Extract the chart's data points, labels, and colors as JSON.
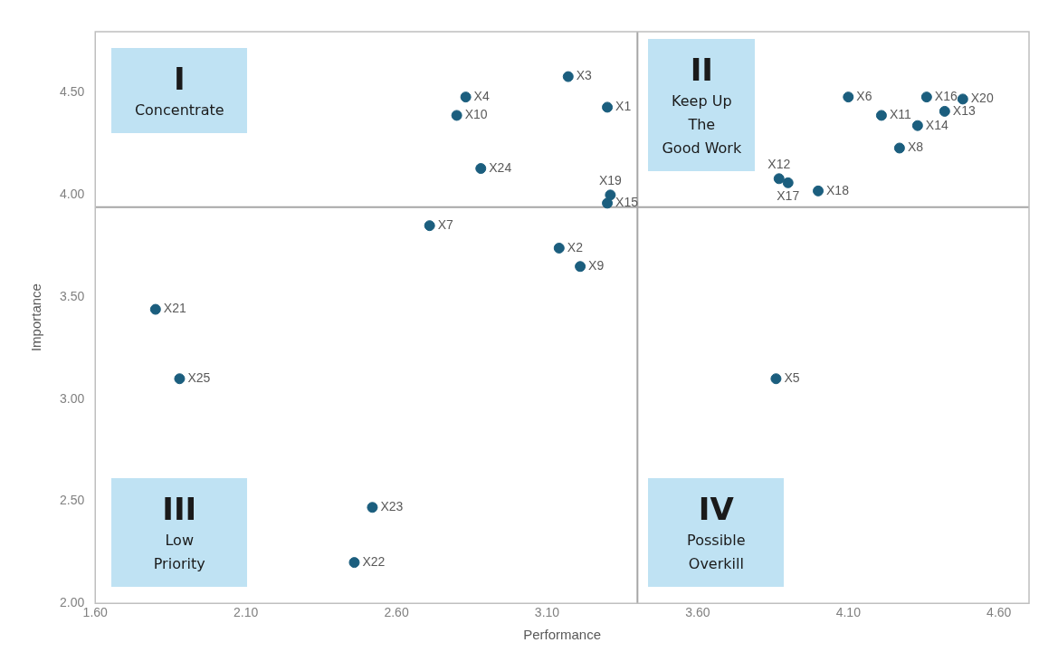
{
  "chart_data": {
    "type": "scatter",
    "xlabel": "Performance",
    "ylabel": "Importance",
    "x": [
      3.3,
      3.14,
      3.17,
      2.83,
      3.86,
      4.1,
      2.71,
      4.27,
      3.21,
      2.8,
      4.21,
      3.87,
      4.42,
      4.33,
      3.3,
      4.36,
      3.9,
      4.0,
      3.31,
      4.48,
      1.8,
      2.46,
      2.52,
      2.88,
      1.88
    ],
    "values": [
      4.43,
      3.74,
      4.58,
      4.48,
      3.1,
      4.48,
      3.85,
      4.23,
      3.65,
      4.39,
      4.39,
      4.08,
      4.41,
      4.34,
      3.96,
      4.48,
      4.06,
      4.02,
      4.0,
      4.47,
      3.44,
      2.2,
      2.47,
      4.13,
      3.1
    ],
    "value_labels": [
      "X1",
      "X2",
      "X3",
      "X4",
      "X5",
      "X6",
      "X7",
      "X8",
      "X9",
      "X10",
      "X11",
      "X12",
      "X13",
      "X14",
      "X15",
      "X16",
      "X17",
      "X18",
      "X19",
      "X20",
      "X21",
      "X22",
      "X23",
      "X24",
      "X25"
    ],
    "color": "#1b5e7e",
    "marker": "circle",
    "xlim": [
      1.6,
      4.7
    ],
    "ylim": [
      2.0,
      4.8
    ],
    "xticks": [
      {
        "value": 1.6,
        "label": "1.60"
      },
      {
        "value": 2.1,
        "label": "2.10"
      },
      {
        "value": 2.6,
        "label": "2.60"
      },
      {
        "value": 3.1,
        "label": "3.10"
      },
      {
        "value": 3.6,
        "label": "3.60"
      },
      {
        "value": 4.1,
        "label": "4.10"
      },
      {
        "value": 4.6,
        "label": "4.60"
      }
    ],
    "yticks": [
      {
        "value": 2.0,
        "label": "2.00"
      },
      {
        "value": 2.5,
        "label": "2.50"
      },
      {
        "value": 3.0,
        "label": "3.00"
      },
      {
        "value": 3.5,
        "label": "3.50"
      },
      {
        "value": 4.0,
        "label": "4.00"
      },
      {
        "value": 4.5,
        "label": "4.50"
      }
    ],
    "grid": false,
    "legend": false,
    "ref_lines": [
      {
        "axis": "x",
        "value": 3.4,
        "color": "#a6a6a6"
      },
      {
        "axis": "y",
        "value": 3.94,
        "color": "#a6a6a6"
      }
    ],
    "annotations": [
      "I\nConcentrate",
      "II\nKeep Up\nThe\nGood Work",
      "III\nLow\nPriority",
      "IV\nPossible\nOverkill"
    ]
  }
}
